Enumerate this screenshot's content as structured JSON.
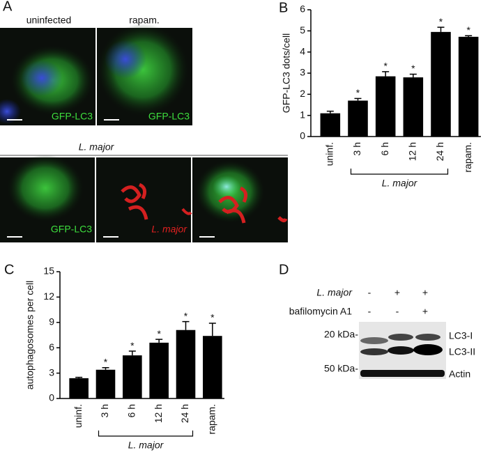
{
  "panel_a": {
    "letter": "A",
    "top_labels": [
      "uninfected",
      "rapam."
    ],
    "top_stain": [
      "GFP-LC3",
      "GFP-LC3"
    ],
    "row_label": "L. major",
    "bottom_stains": [
      "GFP-LC3",
      "L. major"
    ]
  },
  "chart_data": [
    {
      "type": "bar",
      "panel_label": "B",
      "y_label": "GFP-LC3 dots/cell",
      "group_label": "L. major",
      "categories": [
        "uninf.",
        "3 h",
        "6 h",
        "12 h",
        "24 h",
        "rapam."
      ],
      "values": [
        1.1,
        1.7,
        2.85,
        2.8,
        4.95,
        4.72
      ],
      "errors": [
        0.1,
        0.1,
        0.22,
        0.15,
        0.22,
        0.05
      ],
      "markers": [
        null,
        "*",
        "*",
        "*",
        "*",
        "*"
      ],
      "color": "#000000",
      "ylim": [
        0,
        6
      ],
      "yticks": [
        0,
        1,
        2,
        3,
        4,
        5,
        6
      ]
    },
    {
      "type": "bar",
      "panel_label": "C",
      "y_label": "autophagosomes per cell",
      "group_label": "L. major",
      "categories": [
        "uninf.",
        "3 h",
        "6 h",
        "12 h",
        "24 h",
        "rapam."
      ],
      "values": [
        2.4,
        3.4,
        5.1,
        6.6,
        8.1,
        7.4
      ],
      "errors": [
        0.1,
        0.25,
        0.5,
        0.4,
        1.0,
        1.5
      ],
      "markers": [
        null,
        "*",
        "*",
        "*",
        "*",
        "*"
      ],
      "color": "#000000",
      "ylim": [
        0,
        15
      ],
      "yticks": [
        0,
        3,
        6,
        9,
        12,
        15
      ]
    }
  ],
  "panel_d": {
    "letter": "D",
    "rows": [
      {
        "label": "L. major",
        "signs": [
          "-",
          "+",
          "+"
        ]
      },
      {
        "label": "bafilomycin A1",
        "signs": [
          "-",
          "-",
          "+"
        ]
      }
    ],
    "markers": [
      "20 kDa-",
      "50 kDa-"
    ],
    "bands": [
      "LC3-I",
      "LC3-II",
      "Actin"
    ]
  }
}
